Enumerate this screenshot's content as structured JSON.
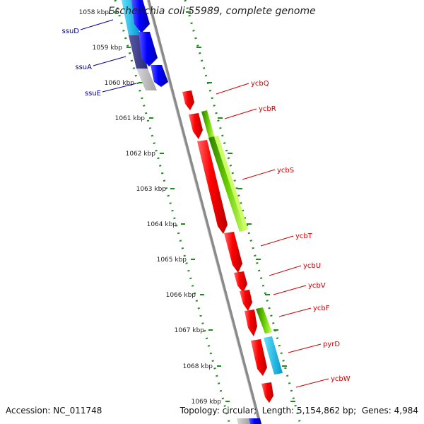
{
  "title": "Escherichia coli 55989, complete genome",
  "footer": {
    "accession_label": "Accession:",
    "accession": "NC_011748",
    "topology_label": "Topology:",
    "topology": "circular",
    "length_label": "Length:",
    "length": "5,154,862 bp",
    "genes_label": "Genes:",
    "genes": "4,984"
  },
  "colors": {
    "forward_gene": "#ff0000",
    "reverse_gene": "#0000ff",
    "green_feature": "#66cc00",
    "cyan_feature": "#00bbee",
    "backbone": "#888888",
    "tick_marks": "#228822",
    "right_label": "#cc0000",
    "left_label": "#000099"
  },
  "kbp_ticks": [
    "1058 kbp",
    "1059 kbp",
    "1060 kbp",
    "1061 kbp",
    "1062 kbp",
    "1063 kbp",
    "1064 kbp",
    "1065 kbp",
    "1066 kbp",
    "1067 kbp",
    "1068 kbp",
    "1069 kbp"
  ],
  "left_genes": [
    {
      "label": "ssuD"
    },
    {
      "label": "ssuA"
    },
    {
      "label": "ssuE"
    }
  ],
  "right_genes": [
    {
      "label": "ycbQ"
    },
    {
      "label": "ycbR"
    },
    {
      "label": "ycbS"
    },
    {
      "label": "ycbT"
    },
    {
      "label": "ycbU"
    },
    {
      "label": "ycbV"
    },
    {
      "label": "ycbF"
    },
    {
      "label": "pyrD"
    },
    {
      "label": "ycbW"
    }
  ]
}
